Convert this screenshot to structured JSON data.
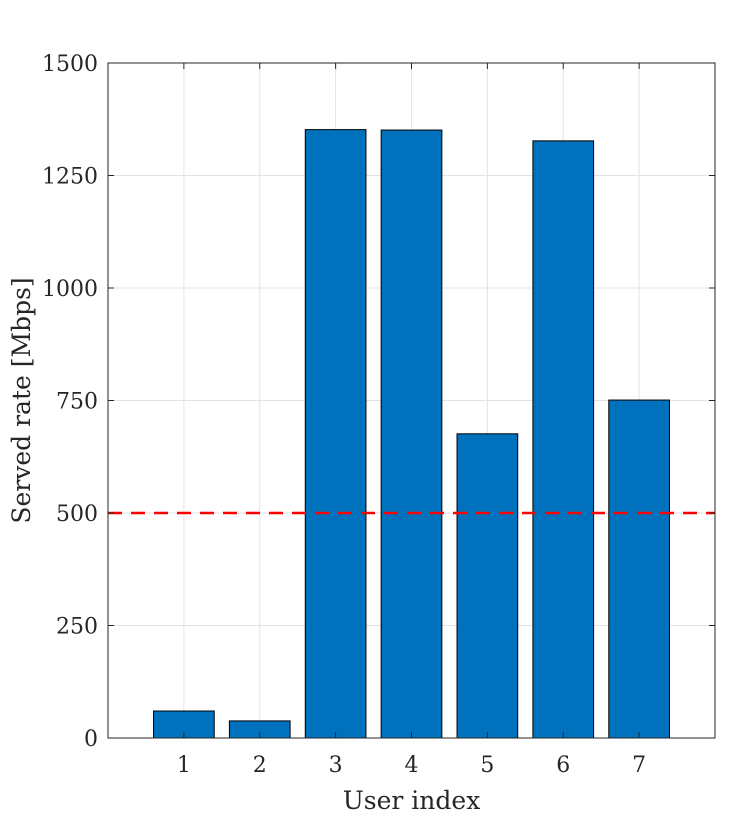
{
  "chart_data": {
    "type": "bar",
    "categories": [
      "1",
      "2",
      "3",
      "4",
      "5",
      "6",
      "7"
    ],
    "values": [
      60,
      38,
      1352,
      1351,
      676,
      1327,
      751
    ],
    "xlabel": "User index",
    "ylabel": "Served rate [Mbps]",
    "ylim": [
      0,
      1500
    ],
    "xlim": [
      0,
      8
    ],
    "yticks": [
      0,
      250,
      500,
      750,
      1000,
      1250,
      1500
    ],
    "grid": true,
    "bar_color": "#0072BD",
    "reference_line": {
      "y": 500,
      "color": "#FF0000",
      "style": "dashed"
    }
  }
}
